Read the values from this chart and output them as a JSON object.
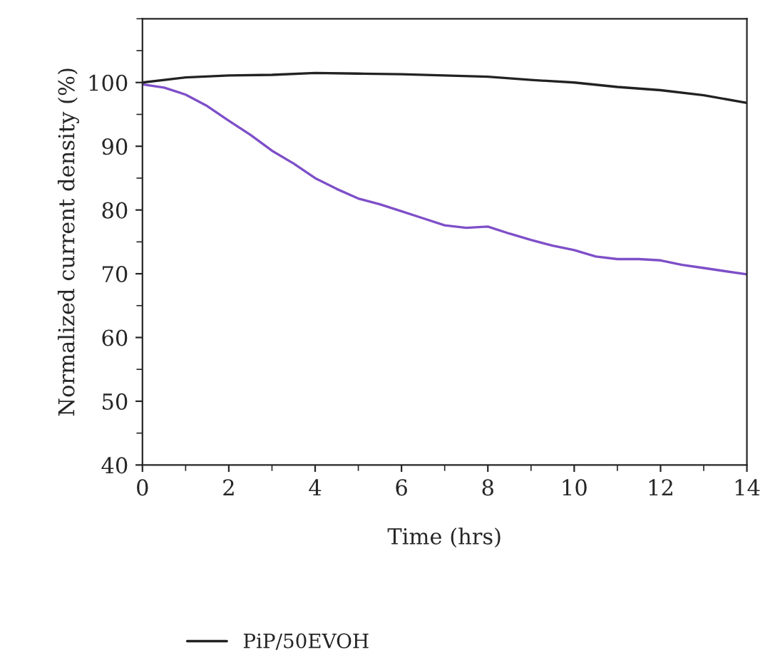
{
  "chart_data": {
    "type": "line",
    "xlabel": "Time (hrs)",
    "ylabel": "Normalized current density (%)",
    "xlim": [
      0,
      14
    ],
    "xticks": [
      0,
      2,
      4,
      6,
      8,
      10,
      12,
      14
    ],
    "ylim": [
      40,
      110
    ],
    "yticks": [
      40,
      50,
      60,
      70,
      80,
      90,
      100
    ],
    "grid": false,
    "legend": "bottom",
    "line_style": "solid",
    "series": [
      {
        "color": "#7e4fc8",
        "x": [
          0,
          0.5,
          1,
          1.5,
          2,
          2.5,
          3,
          3.5,
          4,
          4.5,
          5,
          5.5,
          6,
          6.5,
          7,
          7.5,
          8,
          8.5,
          9,
          9.5,
          10,
          10.5,
          11,
          11.5,
          12,
          12.5,
          13,
          13.5,
          14
        ],
        "values": [
          99.7,
          99.2,
          98.1,
          96.3,
          94.0,
          91.8,
          89.3,
          87.3,
          85.0,
          83.3,
          81.8,
          80.9,
          79.8,
          78.7,
          77.6,
          77.2,
          77.4,
          76.3,
          75.3,
          74.4,
          73.7,
          72.7,
          72.3,
          72.3,
          72.1,
          71.4,
          70.9,
          70.4,
          69.9
        ]
      },
      {
        "name": "PiP/50EVOH",
        "color": "#222222",
        "x": [
          0,
          1,
          2,
          3,
          4,
          5,
          6,
          7,
          8,
          9,
          10,
          11,
          12,
          13,
          14
        ],
        "values": [
          100.0,
          100.8,
          101.1,
          101.2,
          101.5,
          101.4,
          101.3,
          101.1,
          100.9,
          100.4,
          100.0,
          99.3,
          98.8,
          98.0,
          96.8
        ]
      }
    ]
  }
}
